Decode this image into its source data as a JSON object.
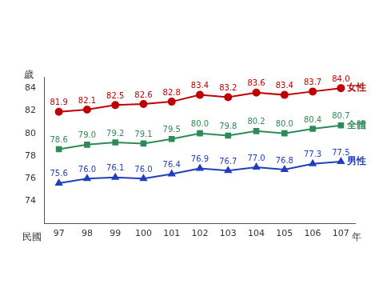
{
  "chart_data": {
    "type": "line",
    "ylabel": "歲",
    "annotations": [
      "民國",
      "年"
    ],
    "categories": [
      "97",
      "98",
      "99",
      "100",
      "101",
      "102",
      "103",
      "104",
      "105",
      "106",
      "107"
    ],
    "ylim": [
      72,
      85
    ],
    "yticks": [
      74,
      76,
      78,
      80,
      82,
      84
    ],
    "grid": false,
    "data_labels": true,
    "series": [
      {
        "name": "女性",
        "color": "#c00000",
        "marker": "circle",
        "values": [
          81.9,
          82.1,
          82.5,
          82.6,
          82.8,
          83.4,
          83.2,
          83.6,
          83.4,
          83.7,
          84.0
        ],
        "value_labels": [
          "81.9",
          "82.1",
          "82.5",
          "82.6",
          "82.8",
          "83.4",
          "83.2",
          "83.6",
          "83.4",
          "83.7",
          "84.0"
        ]
      },
      {
        "name": "全體",
        "color": "#2e8b57",
        "marker": "square",
        "values": [
          78.6,
          79.0,
          79.2,
          79.1,
          79.5,
          80.0,
          79.8,
          80.2,
          80.0,
          80.4,
          80.7
        ],
        "value_labels": [
          "78.6",
          "79.0",
          "79.2",
          "79.1",
          "79.5",
          "80.0",
          "79.8",
          "80.2",
          "80.0",
          "80.4",
          "80.7"
        ]
      },
      {
        "name": "男性",
        "color": "#1f3fbf",
        "marker": "triangle",
        "values": [
          75.6,
          76.0,
          76.1,
          76.0,
          76.4,
          76.9,
          76.7,
          77.0,
          76.8,
          77.3,
          77.5
        ],
        "value_labels": [
          "75.6",
          "76.0",
          "76.1",
          "76.0",
          "76.4",
          "76.9",
          "76.7",
          "77.0",
          "76.8",
          "77.3",
          "77.5"
        ]
      }
    ]
  }
}
